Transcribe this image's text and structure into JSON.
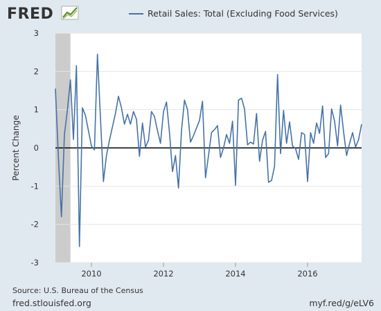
{
  "brand": {
    "logo_text": "FRED"
  },
  "chart_data": {
    "type": "line",
    "title": "",
    "ylabel": "Percent Change",
    "xlabel": "",
    "ylim": [
      -3,
      3
    ],
    "yticks": [
      3,
      2,
      1,
      0,
      -1,
      -2,
      -3
    ],
    "xlim": [
      "2009-01",
      "2017-07"
    ],
    "xticks": [
      "2010",
      "2012",
      "2014",
      "2016"
    ],
    "grid": "horizontal",
    "legend": "top",
    "recession_shading": {
      "start": "2009-01",
      "end": "2009-06",
      "color": "#cccccc"
    },
    "series": [
      {
        "name": "Retail Sales: Total (Excluding Food Services)",
        "color": "#4572a7",
        "start": "2009-01",
        "frequency": "monthly",
        "values": [
          1.55,
          -0.25,
          -1.8,
          0.35,
          1.0,
          1.78,
          0.22,
          2.15,
          -2.58,
          1.05,
          0.85,
          0.45,
          0.05,
          -0.05,
          2.45,
          0.8,
          -0.88,
          -0.2,
          0.2,
          0.55,
          0.9,
          1.35,
          1.05,
          0.62,
          0.88,
          0.62,
          0.95,
          0.75,
          -0.22,
          0.65,
          0.02,
          0.2,
          0.95,
          0.82,
          0.45,
          0.12,
          0.95,
          1.2,
          0.4,
          -0.62,
          -0.2,
          -1.05,
          0.45,
          1.25,
          1.0,
          0.15,
          0.32,
          0.52,
          0.72,
          1.22,
          -0.78,
          -0.2,
          0.4,
          0.48,
          0.58,
          -0.25,
          0.0,
          0.35,
          0.12,
          0.7,
          -0.98,
          1.25,
          1.3,
          1.02,
          0.08,
          0.15,
          0.1,
          0.9,
          -0.35,
          0.2,
          0.43,
          -0.9,
          -0.85,
          -0.48,
          1.92,
          -0.15,
          0.98,
          0.12,
          0.68,
          0.05,
          -0.02,
          -0.3,
          0.4,
          0.35,
          -0.88,
          0.4,
          0.12,
          0.65,
          0.38,
          1.1,
          -0.25,
          -0.15,
          1.02,
          0.7,
          0.05,
          1.12,
          0.42,
          -0.2,
          0.12,
          0.4,
          0.02,
          0.22,
          0.62
        ]
      }
    ]
  },
  "footer": {
    "source": "Source: U.S. Bureau of the Census",
    "site": "fred.stlouisfed.org",
    "shortlink": "myf.red/g/eLV6"
  },
  "colors": {
    "background": "#e1e9f0",
    "plot_background": "#ffffff",
    "grid": "#e6e6e6",
    "zero_line": "#000000",
    "series": "#4572a7",
    "recession": "#cccccc",
    "text": "#333333"
  }
}
